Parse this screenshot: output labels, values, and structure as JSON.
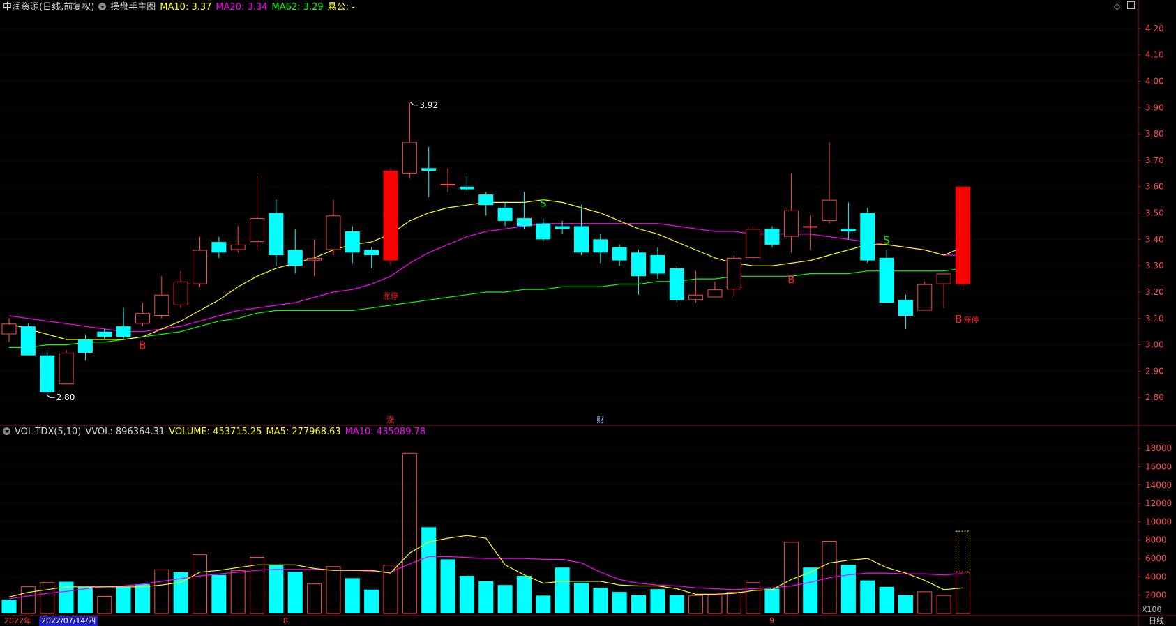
{
  "header": {
    "stock": "中润资源(日线,前复权)",
    "indicator": "操盘手主图",
    "ma10_label": "MA10: 3.37",
    "ma20_label": "MA20: 3.34",
    "ma62_label": "MA62: 3.29",
    "extra_label": "悬公: -"
  },
  "vol_header": {
    "name": "VOL-TDX(5,10)",
    "vvol": "VVOL: 896364.31",
    "volume": "VOLUME: 453715.25",
    "ma5": "MA5: 277968.63",
    "ma10": "MA10: 435089.78"
  },
  "bottom_bar": {
    "year": "2022年",
    "cursor_date": "2022/07/14/四",
    "month_8": "8",
    "month_9": "9",
    "period": "日线",
    "multiplier": "X100"
  },
  "colors": {
    "up": "#ff4b4b",
    "down": "#00ffff",
    "limit_up": "#ff0000",
    "ma10": "#ffff00",
    "ma20": "#ff00ff",
    "ma62": "#00ff00",
    "grid": "#5a0000",
    "axis_label": "#ff4b4b"
  },
  "chart_data": [
    {
      "type": "candlestick",
      "ylim": [
        2.7,
        4.25
      ],
      "yticks": [
        "2.80",
        "2.90",
        "3.00",
        "3.10",
        "3.20",
        "3.30",
        "3.40",
        "3.50",
        "3.60",
        "3.70",
        "3.80",
        "3.90",
        "4.00",
        "4.10",
        "4.20"
      ],
      "candles": [
        {
          "o": 3.04,
          "h": 3.1,
          "l": 3.01,
          "c": 3.08
        },
        {
          "o": 3.07,
          "h": 3.08,
          "l": 2.96,
          "c": 2.96
        },
        {
          "o": 2.96,
          "h": 2.98,
          "l": 2.8,
          "c": 2.82
        },
        {
          "o": 2.85,
          "h": 2.98,
          "l": 2.85,
          "c": 2.97
        },
        {
          "o": 3.02,
          "h": 3.04,
          "l": 2.94,
          "c": 2.97
        },
        {
          "o": 3.05,
          "h": 3.06,
          "l": 3.02,
          "c": 3.03
        },
        {
          "o": 3.07,
          "h": 3.14,
          "l": 3.02,
          "c": 3.03
        },
        {
          "o": 3.08,
          "h": 3.16,
          "l": 3.07,
          "c": 3.12
        },
        {
          "o": 3.11,
          "h": 3.26,
          "l": 3.1,
          "c": 3.19
        },
        {
          "o": 3.15,
          "h": 3.28,
          "l": 3.14,
          "c": 3.24
        },
        {
          "o": 3.23,
          "h": 3.41,
          "l": 3.22,
          "c": 3.36
        },
        {
          "o": 3.39,
          "h": 3.41,
          "l": 3.33,
          "c": 3.35
        },
        {
          "o": 3.36,
          "h": 3.45,
          "l": 3.35,
          "c": 3.38
        },
        {
          "o": 3.39,
          "h": 3.64,
          "l": 3.36,
          "c": 3.48
        },
        {
          "o": 3.5,
          "h": 3.55,
          "l": 3.3,
          "c": 3.34
        },
        {
          "o": 3.36,
          "h": 3.44,
          "l": 3.27,
          "c": 3.3
        },
        {
          "o": 3.32,
          "h": 3.4,
          "l": 3.26,
          "c": 3.33
        },
        {
          "o": 3.36,
          "h": 3.55,
          "l": 3.34,
          "c": 3.49
        },
        {
          "o": 3.43,
          "h": 3.45,
          "l": 3.31,
          "c": 3.35
        },
        {
          "o": 3.36,
          "h": 3.37,
          "l": 3.29,
          "c": 3.34
        },
        {
          "o": 3.32,
          "h": 3.67,
          "l": 3.3,
          "c": 3.66,
          "limit": true
        },
        {
          "o": 3.65,
          "h": 3.92,
          "l": 3.63,
          "c": 3.77
        },
        {
          "o": 3.67,
          "h": 3.75,
          "l": 3.56,
          "c": 3.66
        },
        {
          "o": 3.61,
          "h": 3.67,
          "l": 3.58,
          "c": 3.61
        },
        {
          "o": 3.6,
          "h": 3.64,
          "l": 3.58,
          "c": 3.59
        },
        {
          "o": 3.57,
          "h": 3.58,
          "l": 3.49,
          "c": 3.53
        },
        {
          "o": 3.52,
          "h": 3.54,
          "l": 3.45,
          "c": 3.47
        },
        {
          "o": 3.48,
          "h": 3.58,
          "l": 3.44,
          "c": 3.45
        },
        {
          "o": 3.46,
          "h": 3.48,
          "l": 3.39,
          "c": 3.4
        },
        {
          "o": 3.45,
          "h": 3.47,
          "l": 3.42,
          "c": 3.44
        },
        {
          "o": 3.45,
          "h": 3.53,
          "l": 3.34,
          "c": 3.35
        },
        {
          "o": 3.4,
          "h": 3.42,
          "l": 3.31,
          "c": 3.35
        },
        {
          "o": 3.37,
          "h": 3.38,
          "l": 3.3,
          "c": 3.32
        },
        {
          "o": 3.35,
          "h": 3.36,
          "l": 3.19,
          "c": 3.26
        },
        {
          "o": 3.34,
          "h": 3.37,
          "l": 3.25,
          "c": 3.27
        },
        {
          "o": 3.29,
          "h": 3.3,
          "l": 3.16,
          "c": 3.17
        },
        {
          "o": 3.17,
          "h": 3.28,
          "l": 3.16,
          "c": 3.19
        },
        {
          "o": 3.18,
          "h": 3.24,
          "l": 3.18,
          "c": 3.21
        },
        {
          "o": 3.21,
          "h": 3.34,
          "l": 3.18,
          "c": 3.33
        },
        {
          "o": 3.33,
          "h": 3.45,
          "l": 3.32,
          "c": 3.44
        },
        {
          "o": 3.44,
          "h": 3.45,
          "l": 3.37,
          "c": 3.38
        },
        {
          "o": 3.41,
          "h": 3.65,
          "l": 3.35,
          "c": 3.51
        },
        {
          "o": 3.45,
          "h": 3.49,
          "l": 3.36,
          "c": 3.45
        },
        {
          "o": 3.47,
          "h": 3.77,
          "l": 3.46,
          "c": 3.55
        },
        {
          "o": 3.44,
          "h": 3.54,
          "l": 3.4,
          "c": 3.43
        },
        {
          "o": 3.5,
          "h": 3.52,
          "l": 3.31,
          "c": 3.32
        },
        {
          "o": 3.33,
          "h": 3.36,
          "l": 3.16,
          "c": 3.16
        },
        {
          "o": 3.17,
          "h": 3.19,
          "l": 3.06,
          "c": 3.11
        },
        {
          "o": 3.13,
          "h": 3.24,
          "l": 3.13,
          "c": 3.23
        },
        {
          "o": 3.23,
          "h": 3.27,
          "l": 3.14,
          "c": 3.27
        },
        {
          "o": 3.23,
          "h": 3.6,
          "l": 3.22,
          "c": 3.6,
          "limit": true
        }
      ],
      "ma10": [
        3.08,
        3.06,
        3.04,
        3.02,
        3.02,
        3.02,
        3.02,
        3.03,
        3.06,
        3.09,
        3.13,
        3.17,
        3.22,
        3.26,
        3.29,
        3.31,
        3.33,
        3.36,
        3.38,
        3.39,
        3.42,
        3.47,
        3.5,
        3.52,
        3.53,
        3.54,
        3.54,
        3.54,
        3.55,
        3.54,
        3.52,
        3.5,
        3.47,
        3.44,
        3.42,
        3.39,
        3.36,
        3.33,
        3.31,
        3.3,
        3.3,
        3.31,
        3.32,
        3.34,
        3.36,
        3.38,
        3.38,
        3.37,
        3.36,
        3.34,
        3.37
      ],
      "ma20": [
        3.11,
        3.1,
        3.09,
        3.08,
        3.07,
        3.06,
        3.05,
        3.05,
        3.06,
        3.07,
        3.09,
        3.11,
        3.13,
        3.14,
        3.15,
        3.16,
        3.18,
        3.2,
        3.21,
        3.23,
        3.26,
        3.31,
        3.35,
        3.38,
        3.41,
        3.43,
        3.44,
        3.45,
        3.46,
        3.46,
        3.46,
        3.46,
        3.46,
        3.46,
        3.46,
        3.45,
        3.44,
        3.43,
        3.43,
        3.42,
        3.42,
        3.42,
        3.42,
        3.41,
        3.4,
        3.39,
        3.38,
        3.37,
        3.36,
        3.34,
        3.34
      ],
      "ma62": [
        2.99,
        2.99,
        3.0,
        3.0,
        3.01,
        3.01,
        3.02,
        3.03,
        3.04,
        3.05,
        3.07,
        3.09,
        3.1,
        3.12,
        3.13,
        3.13,
        3.13,
        3.13,
        3.13,
        3.14,
        3.15,
        3.16,
        3.17,
        3.18,
        3.19,
        3.2,
        3.2,
        3.21,
        3.21,
        3.22,
        3.22,
        3.22,
        3.23,
        3.23,
        3.24,
        3.24,
        3.25,
        3.25,
        3.26,
        3.26,
        3.26,
        3.26,
        3.27,
        3.27,
        3.27,
        3.28,
        3.28,
        3.28,
        3.28,
        3.28,
        3.29
      ],
      "annotations": [
        {
          "i": 21,
          "price": 3.92,
          "text": "3.92",
          "kind": "high"
        },
        {
          "i": 2,
          "price": 2.8,
          "text": "2.80",
          "kind": "low"
        },
        {
          "i": 7,
          "price": 3.0,
          "text": "B",
          "kind": "buy"
        },
        {
          "i": 41,
          "price": 3.25,
          "text": "B",
          "kind": "buy"
        },
        {
          "i": 50,
          "price": 3.1,
          "text": "B",
          "kind": "buy"
        },
        {
          "i": 28,
          "price": 3.54,
          "text": "S",
          "kind": "sell"
        },
        {
          "i": 46,
          "price": 3.4,
          "text": "S",
          "kind": "sell"
        },
        {
          "i": 20,
          "price": 3.19,
          "text": "涨停",
          "kind": "limit"
        },
        {
          "i": 50,
          "price": 3.1,
          "text": "涨停",
          "kind": "limit"
        }
      ],
      "events": [
        {
          "i": 20,
          "text": "涨"
        },
        {
          "i": 31,
          "text": "财"
        }
      ]
    },
    {
      "type": "bar",
      "ylim": [
        0,
        19000
      ],
      "yticks": [
        "2000",
        "4000",
        "6000",
        "8000",
        "10000",
        "12000",
        "14000",
        "16000",
        "18000"
      ],
      "values": [
        1500,
        2950,
        3400,
        3450,
        2900,
        1900,
        2900,
        3200,
        4800,
        4500,
        6450,
        4200,
        4700,
        6150,
        5300,
        4550,
        3250,
        5150,
        3850,
        2600,
        5300,
        17500,
        9400,
        5900,
        4100,
        3500,
        3100,
        4100,
        1950,
        5000,
        3350,
        2800,
        2350,
        2000,
        2650,
        2000,
        2000,
        2050,
        2350,
        3400,
        2700,
        7800,
        5000,
        7900,
        5300,
        3600,
        2900,
        2000,
        2400,
        2000,
        4537
      ],
      "up": [
        false,
        true,
        true,
        false,
        false,
        true,
        false,
        false,
        true,
        false,
        true,
        false,
        true,
        true,
        false,
        false,
        true,
        true,
        false,
        false,
        true,
        true,
        false,
        false,
        false,
        false,
        false,
        false,
        false,
        false,
        false,
        false,
        false,
        false,
        false,
        false,
        true,
        true,
        true,
        true,
        false,
        true,
        false,
        true,
        false,
        false,
        false,
        false,
        true,
        true,
        true
      ],
      "pending_next": 8960,
      "ma5": [
        1800,
        2300,
        2600,
        2900,
        2900,
        2900,
        2900,
        2900,
        3100,
        3400,
        4500,
        4700,
        5000,
        5300,
        5300,
        5300,
        4900,
        4700,
        4700,
        4700,
        4400,
        6600,
        7800,
        8200,
        8500,
        8200,
        5300,
        4200,
        3300,
        3500,
        3500,
        3500,
        3100,
        3000,
        3000,
        2700,
        2100,
        2100,
        2200,
        2500,
        2600,
        3700,
        4500,
        5500,
        5800,
        6000,
        5000,
        4400,
        3600,
        2600,
        2780
      ],
      "ma10": [
        1600,
        1900,
        2200,
        2400,
        2700,
        2900,
        3000,
        3200,
        3500,
        3800,
        4100,
        4300,
        4500,
        4700,
        4800,
        4800,
        4800,
        4700,
        4700,
        4600,
        4500,
        5400,
        6200,
        6200,
        6100,
        6000,
        6000,
        6000,
        5900,
        5900,
        5500,
        4500,
        3700,
        3300,
        3100,
        3000,
        2800,
        2700,
        2600,
        2700,
        2800,
        3000,
        3400,
        3900,
        4200,
        4400,
        4400,
        4300,
        4300,
        4200,
        4350
      ]
    }
  ]
}
